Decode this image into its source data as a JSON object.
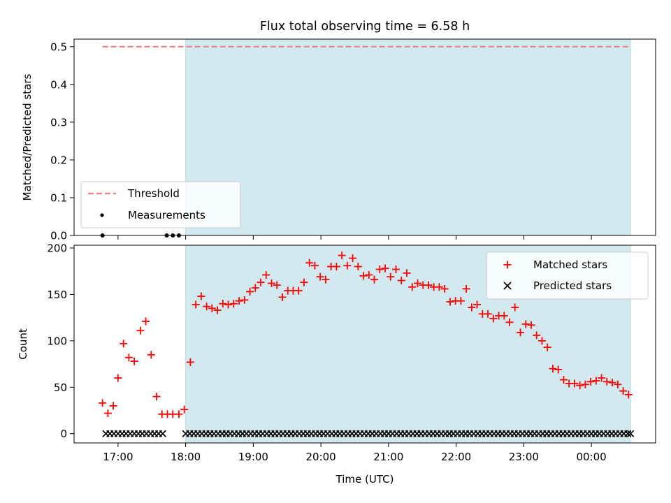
{
  "title": "Flux total observing time = 6.58 h",
  "colors": {
    "shade": "#d3e9f0",
    "threshold": "#f08080",
    "matched": "#ff0000",
    "predicted": "#000000",
    "measurement": "#000000"
  },
  "chart_data": [
    {
      "type": "line",
      "panel": "top",
      "title": "Flux total observing time = 6.58 h",
      "xlabel": "",
      "ylabel": "Matched/Predicted stars",
      "xlim": [
        16.35,
        24.95
      ],
      "ylim": [
        0.0,
        0.52
      ],
      "yticks": [
        0.0,
        0.1,
        0.2,
        0.3,
        0.4,
        0.5
      ],
      "ytick_labels": [
        "0.0",
        "0.1",
        "0.2",
        "0.3",
        "0.4",
        "0.5"
      ],
      "xticks": [
        17,
        18,
        19,
        20,
        21,
        22,
        23,
        24
      ],
      "shaded_span": [
        18.0,
        24.58
      ],
      "legend_position": "lower-left",
      "series": [
        {
          "name": "Threshold",
          "style": "dashed-line",
          "x": [
            16.77,
            24.58
          ],
          "y": [
            0.5,
            0.5
          ]
        },
        {
          "name": "Measurements",
          "style": "dot",
          "x": [
            16.77,
            17.72,
            17.81,
            17.9
          ],
          "y": [
            0.0,
            0.0,
            0.0,
            0.0
          ]
        }
      ]
    },
    {
      "type": "scatter",
      "panel": "bottom",
      "xlabel": "Time (UTC)",
      "ylabel": "Count",
      "xlim": [
        16.35,
        24.95
      ],
      "ylim": [
        -10,
        203
      ],
      "yticks": [
        0,
        50,
        100,
        150,
        200
      ],
      "ytick_labels": [
        "0",
        "50",
        "100",
        "150",
        "200"
      ],
      "xticks": [
        17,
        18,
        19,
        20,
        21,
        22,
        23,
        24
      ],
      "xtick_labels": [
        "17:00",
        "18:00",
        "19:00",
        "20:00",
        "21:00",
        "22:00",
        "23:00",
        "00:00"
      ],
      "shaded_span": [
        18.0,
        24.58
      ],
      "legend_position": "upper-right",
      "series": [
        {
          "name": "Matched stars",
          "marker": "plus",
          "x": [
            16.77,
            16.85,
            16.93,
            17.0,
            17.08,
            17.16,
            17.24,
            17.33,
            17.41,
            17.49,
            17.57,
            17.65,
            17.73,
            17.81,
            17.9,
            17.98,
            18.07,
            18.15,
            18.23,
            18.31,
            18.39,
            18.47,
            18.55,
            18.63,
            18.71,
            18.79,
            18.87,
            18.95,
            19.03,
            19.11,
            19.19,
            19.27,
            19.35,
            19.43,
            19.51,
            19.59,
            19.67,
            19.75,
            19.83,
            19.91,
            19.99,
            20.07,
            20.15,
            20.23,
            20.31,
            20.39,
            20.47,
            20.55,
            20.63,
            20.71,
            20.79,
            20.87,
            20.95,
            21.03,
            21.11,
            21.19,
            21.27,
            21.35,
            21.43,
            21.51,
            21.59,
            21.67,
            21.75,
            21.83,
            21.91,
            21.99,
            22.07,
            22.15,
            22.23,
            22.31,
            22.39,
            22.47,
            22.55,
            22.63,
            22.71,
            22.79,
            22.87,
            22.95,
            23.03,
            23.11,
            23.19,
            23.27,
            23.35,
            23.43,
            23.51,
            23.59,
            23.67,
            23.75,
            23.83,
            23.91,
            23.99,
            24.07,
            24.15,
            24.23,
            24.31,
            24.39,
            24.47,
            24.55
          ],
          "y": [
            33,
            22,
            30,
            60,
            97,
            82,
            78,
            111,
            121,
            85,
            40,
            21,
            21,
            21,
            21,
            26,
            77,
            139,
            148,
            137,
            135,
            133,
            140,
            139,
            140,
            143,
            144,
            153,
            157,
            163,
            171,
            162,
            160,
            147,
            154,
            154,
            154,
            163,
            184,
            181,
            169,
            166,
            180,
            180,
            192,
            181,
            189,
            180,
            170,
            171,
            166,
            177,
            178,
            169,
            177,
            165,
            173,
            158,
            162,
            160,
            160,
            158,
            158,
            156,
            142,
            143,
            143,
            156,
            136,
            139,
            129,
            129,
            124,
            127,
            127,
            120,
            136,
            109,
            118,
            117,
            106,
            100,
            93,
            70,
            69,
            58,
            54,
            54,
            52,
            53,
            56,
            57,
            60,
            56,
            55,
            53,
            46,
            42
          ]
        },
        {
          "name": "Predicted stars",
          "marker": "x",
          "x": [
            16.82,
            16.88,
            16.94,
            17.0,
            17.06,
            17.12,
            17.18,
            17.24,
            17.3,
            17.36,
            17.42,
            17.48,
            17.54,
            17.6,
            17.66,
            18.0,
            18.06,
            18.12,
            18.18,
            18.24,
            18.3,
            18.36,
            18.42,
            18.48,
            18.54,
            18.6,
            18.66,
            18.72,
            18.78,
            18.84,
            18.9,
            18.96,
            19.02,
            19.08,
            19.14,
            19.2,
            19.26,
            19.32,
            19.38,
            19.44,
            19.5,
            19.56,
            19.62,
            19.68,
            19.74,
            19.8,
            19.86,
            19.92,
            19.98,
            20.04,
            20.1,
            20.16,
            20.22,
            20.28,
            20.34,
            20.4,
            20.46,
            20.52,
            20.58,
            20.64,
            20.7,
            20.76,
            20.82,
            20.88,
            20.94,
            21.0,
            21.06,
            21.12,
            21.18,
            21.24,
            21.3,
            21.36,
            21.42,
            21.48,
            21.54,
            21.6,
            21.66,
            21.72,
            21.78,
            21.84,
            21.9,
            21.96,
            22.02,
            22.08,
            22.14,
            22.2,
            22.26,
            22.32,
            22.38,
            22.44,
            22.5,
            22.56,
            22.62,
            22.68,
            22.74,
            22.8,
            22.86,
            22.92,
            22.98,
            23.04,
            23.1,
            23.16,
            23.22,
            23.28,
            23.34,
            23.4,
            23.46,
            23.52,
            23.58,
            23.64,
            23.7,
            23.76,
            23.82,
            23.88,
            23.94,
            24.0,
            24.06,
            24.12,
            24.18,
            24.24,
            24.3,
            24.36,
            24.42,
            24.48,
            24.54,
            24.58
          ],
          "y": [
            0,
            0,
            0,
            0,
            0,
            0,
            0,
            0,
            0,
            0,
            0,
            0,
            0,
            0,
            0,
            0,
            0,
            0,
            0,
            0,
            0,
            0,
            0,
            0,
            0,
            0,
            0,
            0,
            0,
            0,
            0,
            0,
            0,
            0,
            0,
            0,
            0,
            0,
            0,
            0,
            0,
            0,
            0,
            0,
            0,
            0,
            0,
            0,
            0,
            0,
            0,
            0,
            0,
            0,
            0,
            0,
            0,
            0,
            0,
            0,
            0,
            0,
            0,
            0,
            0,
            0,
            0,
            0,
            0,
            0,
            0,
            0,
            0,
            0,
            0,
            0,
            0,
            0,
            0,
            0,
            0,
            0,
            0,
            0,
            0,
            0,
            0,
            0,
            0,
            0,
            0,
            0,
            0,
            0,
            0,
            0,
            0,
            0,
            0,
            0,
            0,
            0,
            0,
            0,
            0,
            0,
            0,
            0,
            0,
            0,
            0,
            0,
            0,
            0,
            0,
            0,
            0,
            0,
            0,
            0,
            0,
            0,
            0,
            0,
            0,
            0
          ]
        }
      ]
    }
  ]
}
